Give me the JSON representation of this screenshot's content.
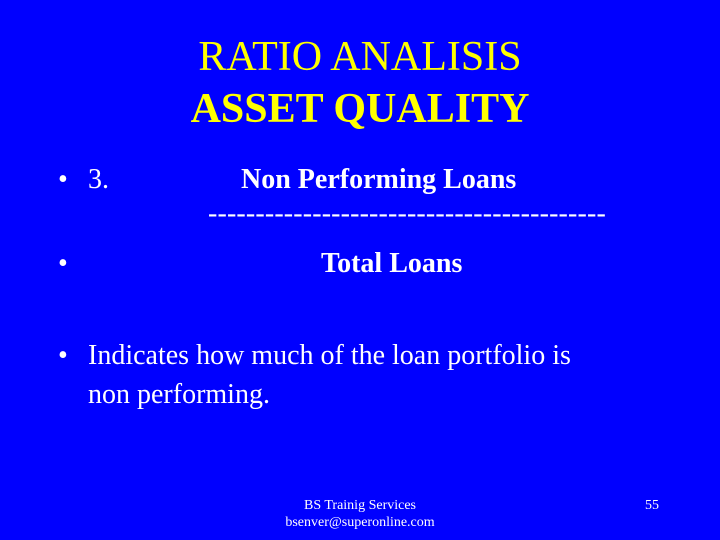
{
  "title": {
    "line1": "RATIO ANALISIS",
    "line2": "ASSET QUALITY"
  },
  "body": {
    "bullet_char": "•",
    "item_number": "3.",
    "numerator": "Non Performing  Loans",
    "divider": "------------------------------------------",
    "denominator": "Total  Loans",
    "description_line1": "Indicates how much of the loan portfolio is",
    "description_line2": "non performing."
  },
  "footer": {
    "line1": "BS Trainig Services",
    "line2": "bsenver@superonline.com",
    "page_number": "55"
  },
  "colors": {
    "background": "#0000FF",
    "title": "#FFFF00",
    "text": "#FFFFFF"
  }
}
